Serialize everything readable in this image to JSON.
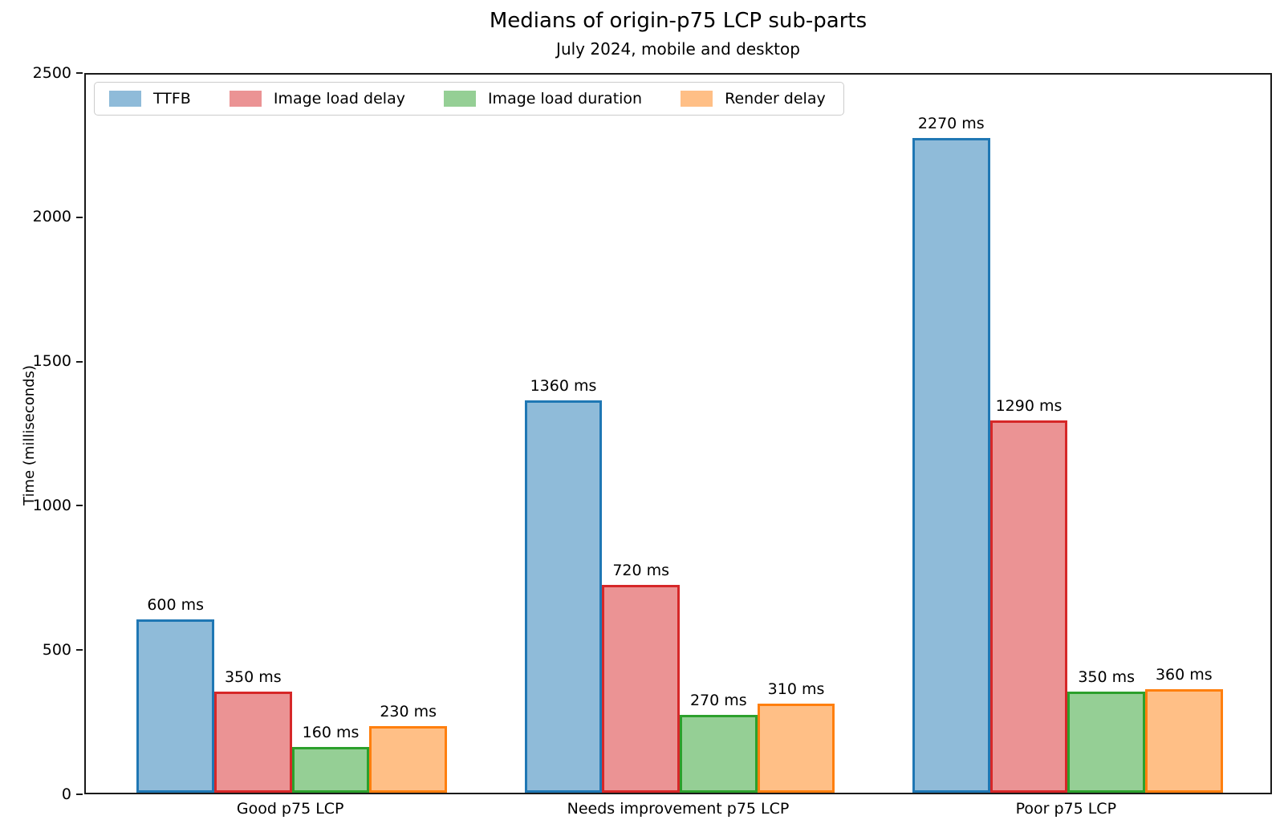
{
  "title": "Medians of origin-p75 LCP sub-parts",
  "subtitle": "July 2024, mobile and desktop",
  "chart_data": {
    "type": "bar",
    "title": "Medians of origin-p75 LCP sub-parts",
    "subtitle": "July 2024, mobile and desktop",
    "categories": [
      "Good p75 LCP",
      "Needs improvement p75 LCP",
      "Poor p75 LCP"
    ],
    "series": [
      {
        "name": "TTFB",
        "values": [
          600,
          1360,
          2270
        ],
        "fill_color": "#8FBBD9",
        "edge_color": "#1F77B4"
      },
      {
        "name": "Image load delay",
        "values": [
          350,
          720,
          1290
        ],
        "fill_color": "#EB9394",
        "edge_color": "#D62728"
      },
      {
        "name": "Image load duration",
        "values": [
          160,
          270,
          350
        ],
        "fill_color": "#95CF95",
        "edge_color": "#2CA02C"
      },
      {
        "name": "Render delay",
        "values": [
          230,
          310,
          360
        ],
        "fill_color": "#FFBF86",
        "edge_color": "#FF7F0E"
      }
    ],
    "value_label_suffix": " ms",
    "xlabel": "",
    "ylabel": "Time (milliseconds)",
    "ylim": [
      0,
      2500
    ],
    "yticks": [
      0,
      500,
      1000,
      1500,
      2000,
      2500
    ],
    "xlim_units": [
      -0.531,
      2.531
    ],
    "bar_width_units": 0.2,
    "grid": false,
    "legend_position": "upper left"
  }
}
